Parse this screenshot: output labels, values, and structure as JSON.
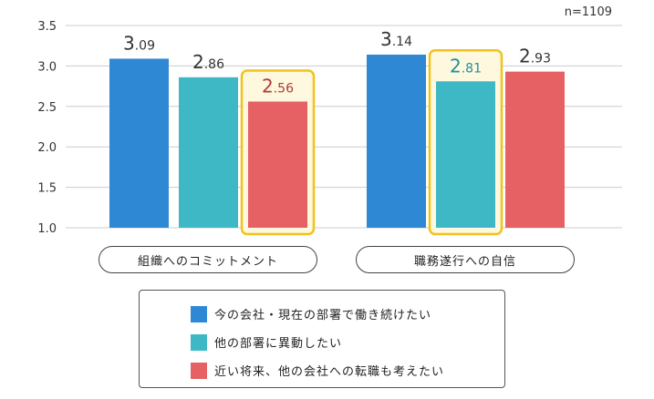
{
  "sample_size": "n=1109",
  "colors": {
    "series_1": "#2e88d4",
    "series_2": "#3fb8c6",
    "series_3": "#e66163",
    "highlight_border": "#f2c21b",
    "highlight_fill": "#fdf8de",
    "grid": "#cccccc",
    "value_highlight_1": "#b33a3a",
    "value_highlight_2": "#1f8f9c"
  },
  "chart_data": {
    "type": "bar",
    "title": "",
    "xlabel": "",
    "ylabel": "",
    "ylim": [
      1.0,
      3.5
    ],
    "yticks": [
      "1.0",
      "1.5",
      "2.0",
      "2.5",
      "3.0",
      "3.5"
    ],
    "grid": true,
    "categories": [
      "組織へのコミットメント",
      "職務遂行への自信"
    ],
    "series": [
      {
        "name": "今の会社・現在の部署で働き続けたい",
        "values": [
          3.09,
          3.14
        ]
      },
      {
        "name": "他の部署に異動したい",
        "values": [
          2.86,
          2.81
        ]
      },
      {
        "name": "近い将来、他の会社への転職も考えたい",
        "values": [
          2.56,
          2.93
        ]
      }
    ],
    "value_labels": [
      [
        "3.09",
        "3.14"
      ],
      [
        "2.86",
        "2.81"
      ],
      [
        "2.56",
        "2.93"
      ]
    ],
    "highlighted": [
      {
        "series": 2,
        "category": 0
      },
      {
        "series": 1,
        "category": 1
      }
    ],
    "legend": "bottom"
  }
}
